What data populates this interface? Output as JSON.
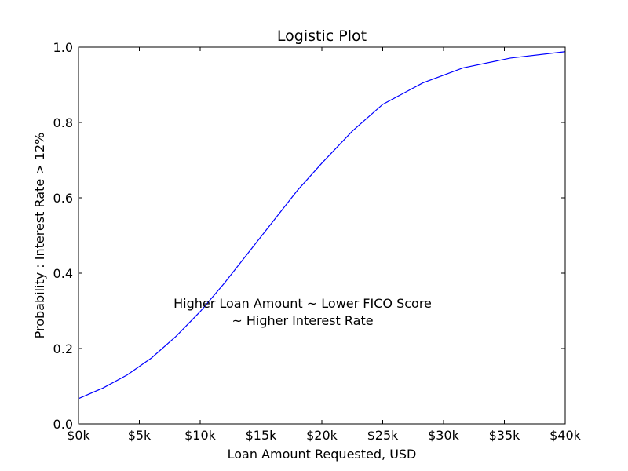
{
  "chart_data": {
    "type": "line",
    "title": "Logistic Plot",
    "xlabel": "Loan Amount Requested, USD",
    "ylabel": "Probability : Interest Rate > 12%",
    "xlim": [
      0,
      40000
    ],
    "ylim": [
      0,
      1
    ],
    "grid": false,
    "x_ticks": [
      {
        "value": 0,
        "label": "$0k"
      },
      {
        "value": 5000,
        "label": "$5k"
      },
      {
        "value": 10000,
        "label": "$10k"
      },
      {
        "value": 15000,
        "label": "$15k"
      },
      {
        "value": 20000,
        "label": "$20k"
      },
      {
        "value": 25000,
        "label": "$25k"
      },
      {
        "value": 30000,
        "label": "$30k"
      },
      {
        "value": 35000,
        "label": "$35k"
      },
      {
        "value": 40000,
        "label": "$40k"
      }
    ],
    "y_ticks": [
      {
        "value": 0,
        "label": "0.0"
      },
      {
        "value": 0.2,
        "label": "0.2"
      },
      {
        "value": 0.4,
        "label": "0.4"
      },
      {
        "value": 0.6,
        "label": "0.6"
      },
      {
        "value": 0.8,
        "label": "0.8"
      },
      {
        "value": 1.0,
        "label": "1.0"
      }
    ],
    "series": [
      {
        "color": "#0000ff",
        "x": [
          0,
          2000,
          4000,
          6000,
          8000,
          10000,
          12000,
          14000,
          16000,
          18000,
          20000,
          22500,
          25000,
          28300,
          31600,
          35500,
          40000
        ],
        "y": [
          0.067,
          0.095,
          0.13,
          0.175,
          0.232,
          0.298,
          0.374,
          0.456,
          0.538,
          0.62,
          0.692,
          0.777,
          0.848,
          0.905,
          0.945,
          0.971,
          0.988
        ]
      }
    ],
    "annotation": {
      "lines": [
        "Higher Loan Amount ~ Lower FICO Score",
        "~ Higher Interest Rate"
      ],
      "x": 25000,
      "y": 0.3
    }
  }
}
